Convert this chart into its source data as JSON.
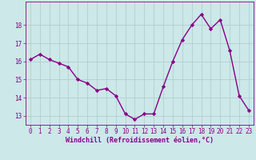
{
  "x": [
    0,
    1,
    2,
    3,
    4,
    5,
    6,
    7,
    8,
    9,
    10,
    11,
    12,
    13,
    14,
    15,
    16,
    17,
    18,
    19,
    20,
    21,
    22,
    23
  ],
  "y": [
    16.1,
    16.4,
    16.1,
    15.9,
    15.7,
    15.0,
    14.8,
    14.4,
    14.5,
    14.1,
    13.1,
    12.8,
    13.1,
    13.1,
    14.6,
    16.0,
    17.2,
    18.0,
    18.6,
    17.8,
    18.3,
    16.6,
    14.1,
    13.3
  ],
  "line_color": "#880088",
  "marker": "D",
  "markersize": 2.2,
  "linewidth": 1.0,
  "xlabel": "Windchill (Refroidissement éolien,°C)",
  "xlabel_fontsize": 6.0,
  "bg_color": "#cce8e8",
  "grid_color": "#aacccc",
  "tick_color": "#880088",
  "label_color": "#880088",
  "ylim": [
    12.5,
    19.3
  ],
  "yticks": [
    13,
    14,
    15,
    16,
    17,
    18
  ],
  "xticks": [
    0,
    1,
    2,
    3,
    4,
    5,
    6,
    7,
    8,
    9,
    10,
    11,
    12,
    13,
    14,
    15,
    16,
    17,
    18,
    19,
    20,
    21,
    22,
    23
  ],
  "tick_fontsize": 5.5
}
